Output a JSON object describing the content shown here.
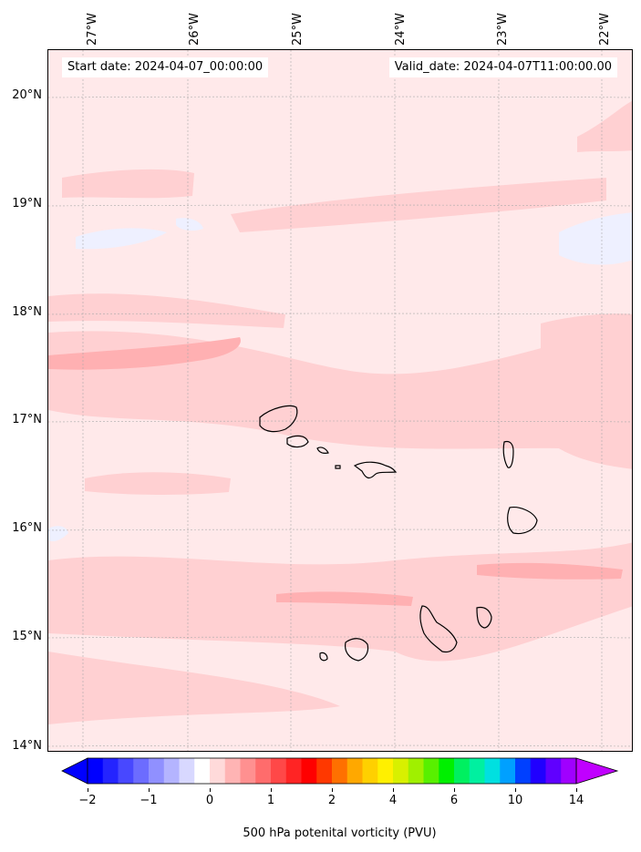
{
  "map": {
    "start_label": "Start date: 2024-04-07_00:00:00",
    "valid_label": "Valid_date: 2024-04-07T11:00:00.00",
    "lon_labels": [
      "27°W",
      "26°W",
      "25°W",
      "24°W",
      "23°W",
      "22°W"
    ],
    "lat_labels": [
      "20°N",
      "19°N",
      "18°N",
      "17°N",
      "16°N",
      "15°N",
      "14°N"
    ],
    "field_colors": {
      "background": "#ffe9ea",
      "light_positive": "#ffd0d2",
      "medium_positive": "#ffb0b2",
      "light_negative": "#eef0ff"
    }
  },
  "colorbar": {
    "title": "500 hPa potenital vorticity (PVU)",
    "ticks": [
      "−2",
      "−1",
      "0",
      "1",
      "2",
      "4",
      "6",
      "10",
      "14"
    ],
    "colors": [
      "#0000ff",
      "#2424ff",
      "#4848ff",
      "#6c6cff",
      "#9090ff",
      "#b4b4ff",
      "#d8d8ff",
      "#ffffff",
      "#ffdada",
      "#ffb4b4",
      "#ff9090",
      "#ff6c6c",
      "#ff4848",
      "#ff2424",
      "#ff0000",
      "#ff3800",
      "#ff7000",
      "#ffa800",
      "#ffd000",
      "#fff000",
      "#d8f000",
      "#a0f000",
      "#58f000",
      "#00f000",
      "#00f060",
      "#00f0a0",
      "#00e0e0",
      "#00a0ff",
      "#0040ff",
      "#2000ff",
      "#6000ff",
      "#a000ff"
    ],
    "under_color": "#0000ff",
    "over_color": "#c000ff"
  }
}
